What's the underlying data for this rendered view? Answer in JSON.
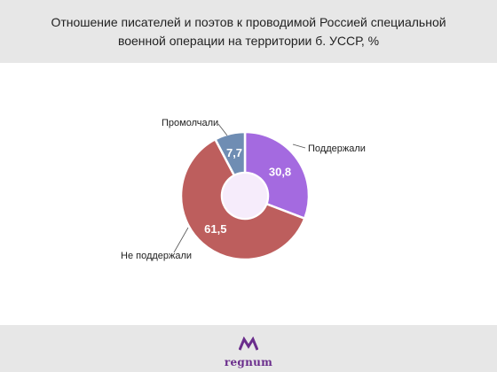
{
  "header": {
    "title": "Отношение писателей и поэтов к проводимой Россией специальной военной операции на территории б. УССР, %"
  },
  "chart_data": {
    "type": "pie",
    "variant": "donut",
    "categories": [
      "Поддержали",
      "Не поддержали",
      "Промолчали"
    ],
    "values": [
      30.8,
      61.5,
      7.7
    ],
    "value_labels": [
      "30,8",
      "61,5",
      "7,7"
    ],
    "colors": [
      "#a46ae0",
      "#bd5e5d",
      "#6f8db3"
    ],
    "center_color": "#f6ecfb",
    "legend": "callout labels"
  },
  "footer": {
    "brand": "regnum",
    "logo_icon": "regnum-logo-icon",
    "brand_color": "#6a2d8c"
  }
}
